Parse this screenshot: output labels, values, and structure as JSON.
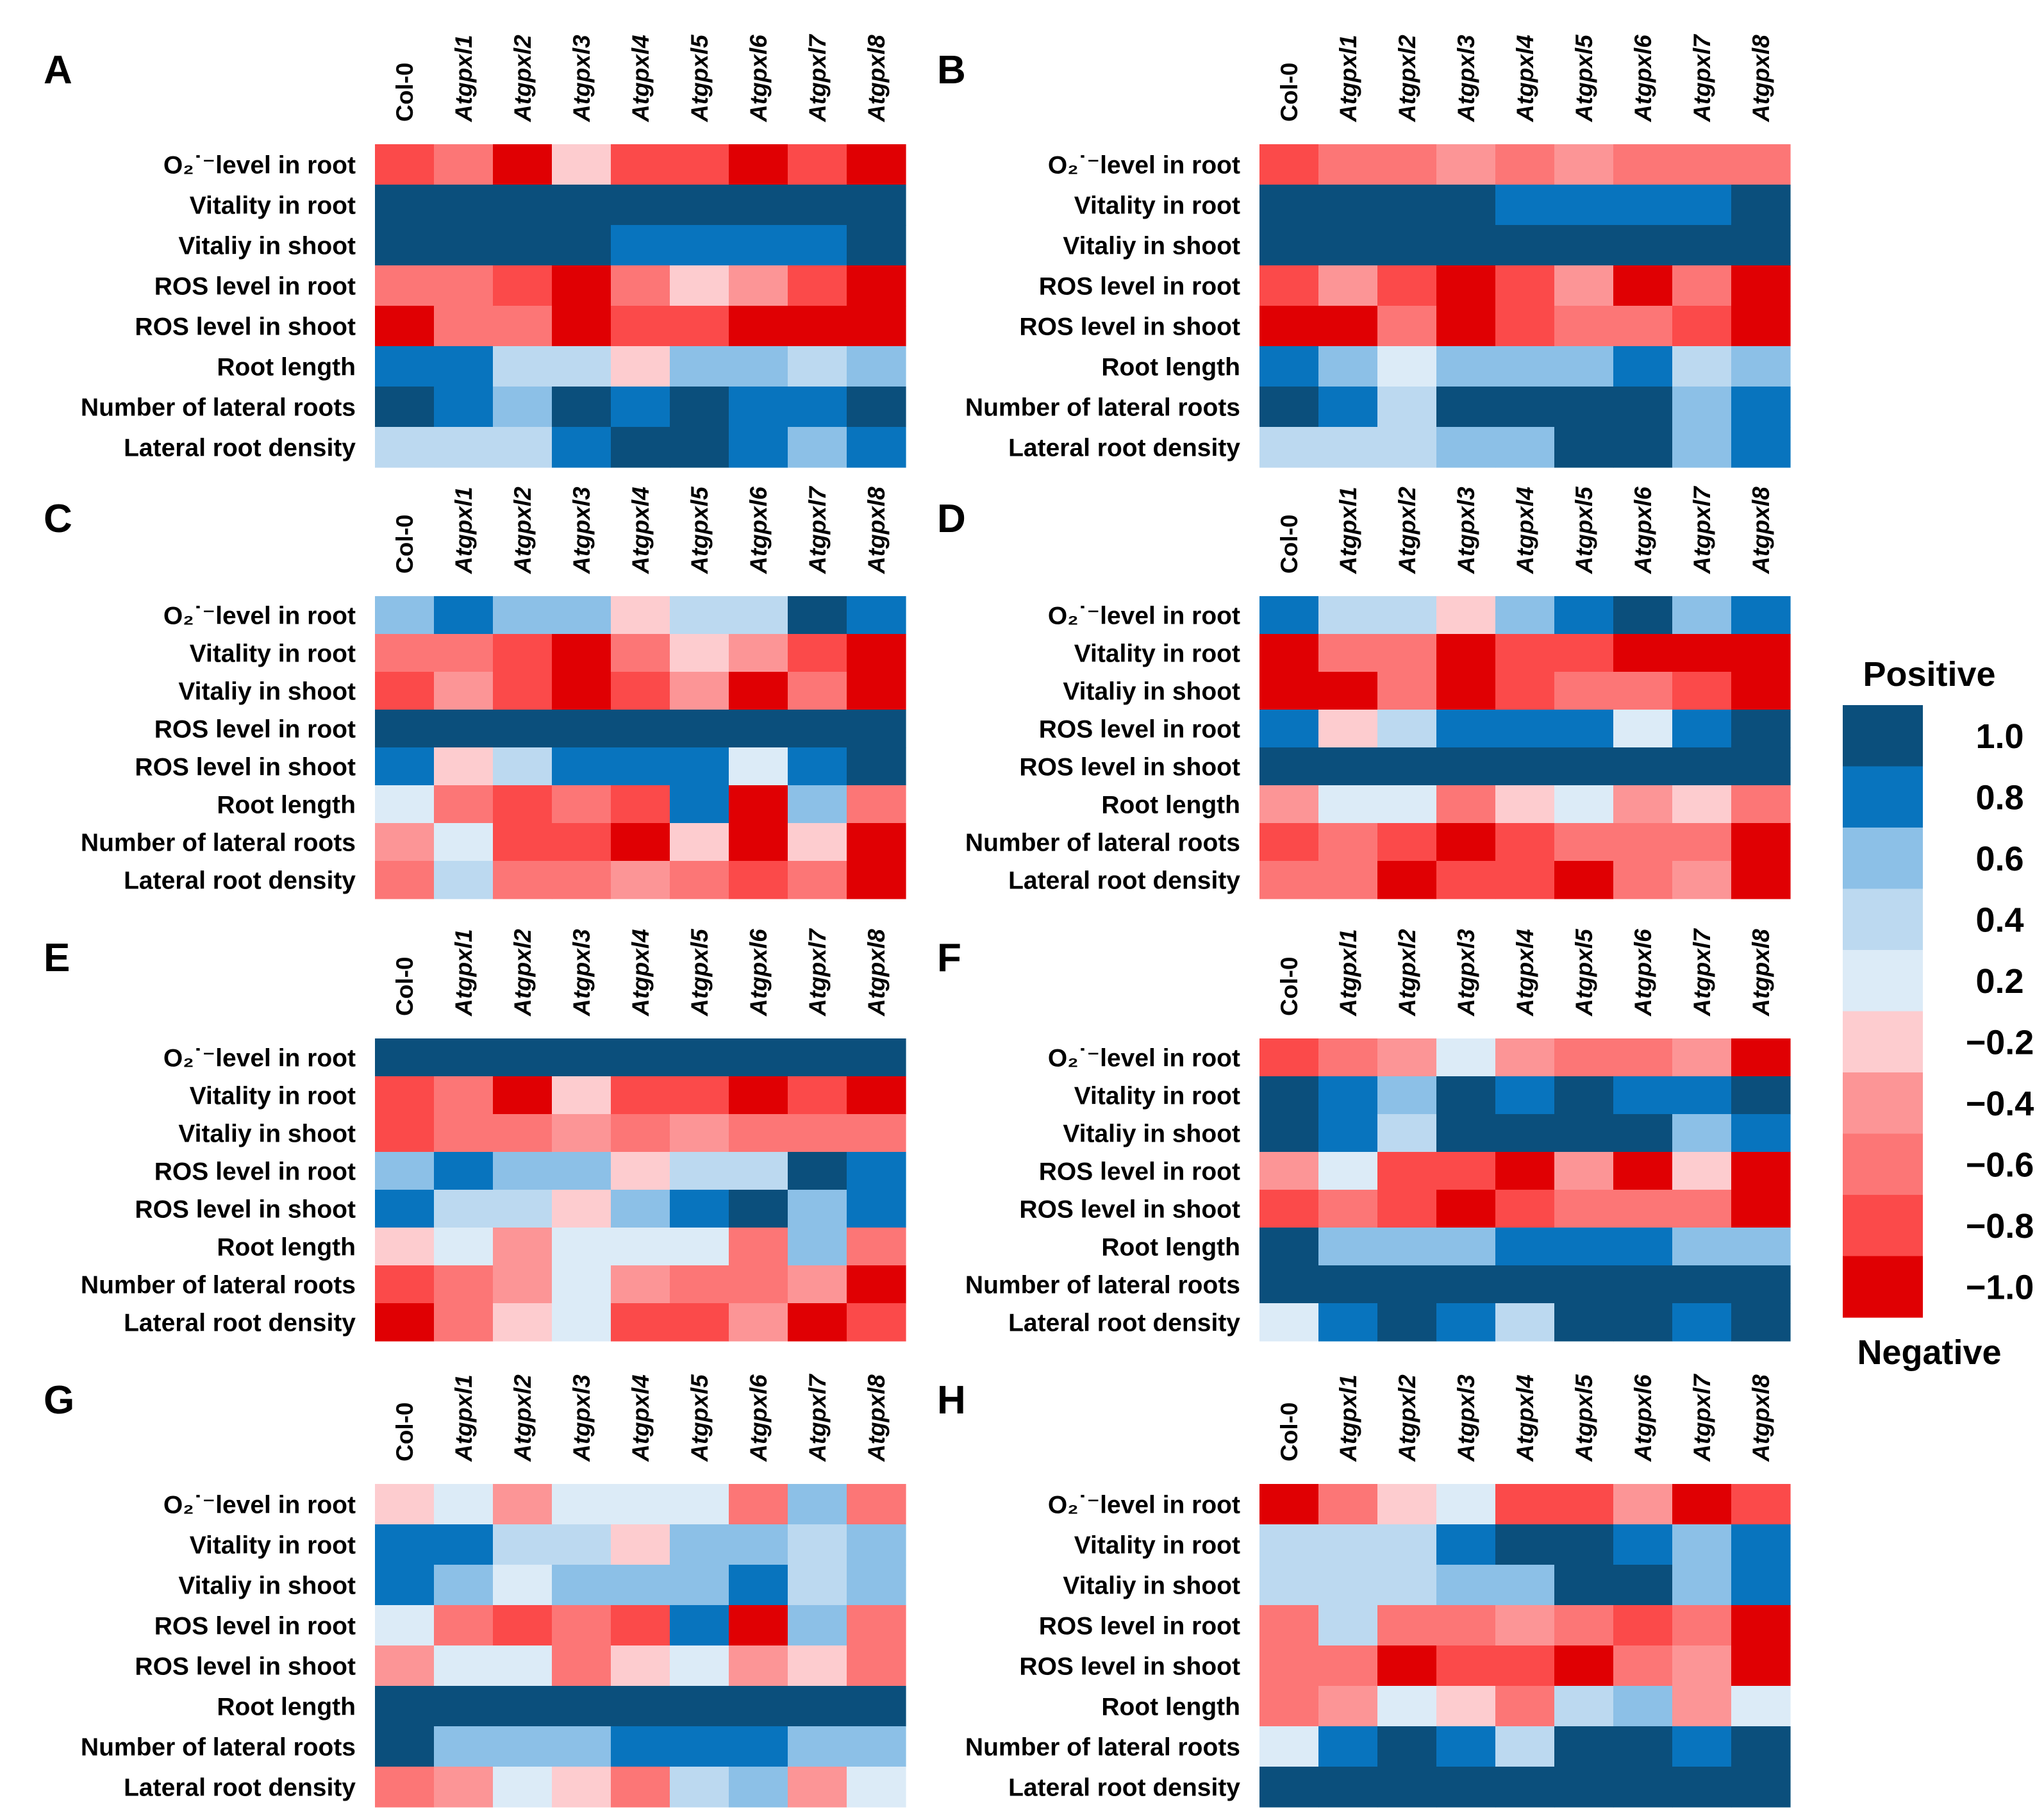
{
  "chart_data": {
    "type": "heatmap",
    "genotypes": [
      "Col-0",
      "Atgpxl1",
      "Atgpxl2",
      "Atgpxl3",
      "Atgpxl4",
      "Atgpxl5",
      "Atgpxl6",
      "Atgpxl7",
      "Atgpxl8"
    ],
    "rows": [
      "O₂˙⁻level in root",
      "Vitality in root",
      "Vitaliy in shoot",
      "ROS level in root",
      "ROS level in shoot",
      "Root length",
      "Number of lateral roots",
      "Lateral root density"
    ],
    "legend": {
      "title_top": "Positive",
      "title_bottom": "Negative",
      "levels": [
        {
          "label": "1.0",
          "color": "#0b4f7c"
        },
        {
          "label": "0.8",
          "color": "#0874be"
        },
        {
          "label": "0.6",
          "color": "#8cc0e7"
        },
        {
          "label": "0.4",
          "color": "#bcd9f0"
        },
        {
          "label": "0.2",
          "color": "#dcebf7"
        },
        {
          "label": "−0.2",
          "color": "#fdcccf"
        },
        {
          "label": "−0.4",
          "color": "#fc9596"
        },
        {
          "label": "−0.6",
          "color": "#fc7676"
        },
        {
          "label": "−0.8",
          "color": "#fb4a4a"
        },
        {
          "label": "−1.0",
          "color": "#e00003"
        }
      ]
    },
    "panels": [
      {
        "label": "A",
        "values": [
          [
            -0.8,
            -0.6,
            -1.0,
            -0.2,
            -0.8,
            -0.8,
            -1.0,
            -0.8,
            -1.0
          ],
          [
            1.0,
            1.0,
            1.0,
            1.0,
            1.0,
            1.0,
            1.0,
            1.0,
            1.0
          ],
          [
            1.0,
            1.0,
            1.0,
            1.0,
            0.8,
            0.8,
            0.8,
            0.8,
            1.0
          ],
          [
            -0.6,
            -0.6,
            -0.8,
            -1.0,
            -0.6,
            -0.2,
            -0.4,
            -0.8,
            -1.0
          ],
          [
            -1.0,
            -0.6,
            -0.6,
            -1.0,
            -0.8,
            -0.8,
            -1.0,
            -1.0,
            -1.0
          ],
          [
            0.8,
            0.8,
            0.4,
            0.4,
            -0.2,
            0.6,
            0.6,
            0.4,
            0.6
          ],
          [
            1.0,
            0.8,
            0.6,
            1.0,
            0.8,
            1.0,
            0.8,
            0.8,
            1.0
          ],
          [
            0.4,
            0.4,
            0.4,
            0.8,
            1.0,
            1.0,
            0.8,
            0.6,
            0.8
          ]
        ]
      },
      {
        "label": "B",
        "values": [
          [
            -0.8,
            -0.6,
            -0.6,
            -0.4,
            -0.6,
            -0.4,
            -0.6,
            -0.6,
            -0.6
          ],
          [
            1.0,
            1.0,
            1.0,
            1.0,
            0.8,
            0.8,
            0.8,
            0.8,
            1.0
          ],
          [
            1.0,
            1.0,
            1.0,
            1.0,
            1.0,
            1.0,
            1.0,
            1.0,
            1.0
          ],
          [
            -0.8,
            -0.4,
            -0.8,
            -1.0,
            -0.8,
            -0.4,
            -1.0,
            -0.6,
            -1.0
          ],
          [
            -1.0,
            -1.0,
            -0.6,
            -1.0,
            -0.8,
            -0.6,
            -0.6,
            -0.8,
            -1.0
          ],
          [
            0.8,
            0.6,
            0.2,
            0.6,
            0.6,
            0.6,
            0.8,
            0.4,
            0.6
          ],
          [
            1.0,
            0.8,
            0.4,
            1.0,
            1.0,
            1.0,
            1.0,
            0.6,
            0.8
          ],
          [
            0.4,
            0.4,
            0.4,
            0.6,
            0.6,
            1.0,
            1.0,
            0.6,
            0.8
          ]
        ]
      },
      {
        "label": "C",
        "values": [
          [
            0.6,
            0.8,
            0.6,
            0.6,
            -0.2,
            0.4,
            0.4,
            1.0,
            0.8
          ],
          [
            -0.6,
            -0.6,
            -0.8,
            -1.0,
            -0.6,
            -0.2,
            -0.4,
            -0.8,
            -1.0
          ],
          [
            -0.8,
            -0.4,
            -0.8,
            -1.0,
            -0.8,
            -0.4,
            -1.0,
            -0.6,
            -1.0
          ],
          [
            1.0,
            1.0,
            1.0,
            1.0,
            1.0,
            1.0,
            1.0,
            1.0,
            1.0
          ],
          [
            0.8,
            -0.2,
            0.4,
            0.8,
            0.8,
            0.8,
            0.2,
            0.8,
            1.0
          ],
          [
            0.2,
            -0.6,
            -0.8,
            -0.6,
            -0.8,
            0.8,
            -1.0,
            0.6,
            -0.6
          ],
          [
            -0.4,
            0.2,
            -0.8,
            -0.8,
            -1.0,
            -0.2,
            -1.0,
            -0.2,
            -1.0
          ],
          [
            -0.6,
            0.4,
            -0.6,
            -0.6,
            -0.4,
            -0.6,
            -0.8,
            -0.6,
            -1.0
          ]
        ]
      },
      {
        "label": "D",
        "values": [
          [
            0.8,
            0.4,
            0.4,
            -0.2,
            0.6,
            0.8,
            1.0,
            0.6,
            0.8
          ],
          [
            -1.0,
            -0.6,
            -0.6,
            -1.0,
            -0.8,
            -0.8,
            -1.0,
            -1.0,
            -1.0
          ],
          [
            -1.0,
            -1.0,
            -0.6,
            -1.0,
            -0.8,
            -0.6,
            -0.6,
            -0.8,
            -1.0
          ],
          [
            0.8,
            -0.2,
            0.4,
            0.8,
            0.8,
            0.8,
            0.2,
            0.8,
            1.0
          ],
          [
            1.0,
            1.0,
            1.0,
            1.0,
            1.0,
            1.0,
            1.0,
            1.0,
            1.0
          ],
          [
            -0.4,
            0.2,
            0.2,
            -0.6,
            -0.2,
            0.2,
            -0.4,
            -0.2,
            -0.6
          ],
          [
            -0.8,
            -0.6,
            -0.8,
            -1.0,
            -0.8,
            -0.6,
            -0.6,
            -0.6,
            -1.0
          ],
          [
            -0.6,
            -0.6,
            -1.0,
            -0.8,
            -0.8,
            -1.0,
            -0.6,
            -0.4,
            -1.0
          ]
        ]
      },
      {
        "label": "E",
        "values": [
          [
            1.0,
            1.0,
            1.0,
            1.0,
            1.0,
            1.0,
            1.0,
            1.0,
            1.0
          ],
          [
            -0.8,
            -0.6,
            -1.0,
            -0.2,
            -0.8,
            -0.8,
            -1.0,
            -0.8,
            -1.0
          ],
          [
            -0.8,
            -0.6,
            -0.6,
            -0.4,
            -0.6,
            -0.4,
            -0.6,
            -0.6,
            -0.6
          ],
          [
            0.6,
            0.8,
            0.6,
            0.6,
            -0.2,
            0.4,
            0.4,
            1.0,
            0.8
          ],
          [
            0.8,
            0.4,
            0.4,
            -0.2,
            0.6,
            0.8,
            1.0,
            0.6,
            0.8
          ],
          [
            -0.2,
            0.2,
            -0.4,
            0.2,
            0.2,
            0.2,
            -0.6,
            0.6,
            -0.6
          ],
          [
            -0.8,
            -0.6,
            -0.4,
            0.2,
            -0.4,
            -0.6,
            -0.6,
            -0.4,
            -1.0
          ],
          [
            -1.0,
            -0.6,
            -0.2,
            0.2,
            -0.8,
            -0.8,
            -0.4,
            -1.0,
            -0.8
          ]
        ]
      },
      {
        "label": "F",
        "values": [
          [
            -0.8,
            -0.6,
            -0.4,
            0.2,
            -0.4,
            -0.6,
            -0.6,
            -0.4,
            -1.0
          ],
          [
            1.0,
            0.8,
            0.6,
            1.0,
            0.8,
            1.0,
            0.8,
            0.8,
            1.0
          ],
          [
            1.0,
            0.8,
            0.4,
            1.0,
            1.0,
            1.0,
            1.0,
            0.6,
            0.8
          ],
          [
            -0.4,
            0.2,
            -0.8,
            -0.8,
            -1.0,
            -0.4,
            -1.0,
            -0.2,
            -1.0
          ],
          [
            -0.8,
            -0.6,
            -0.8,
            -1.0,
            -0.8,
            -0.6,
            -0.6,
            -0.6,
            -1.0
          ],
          [
            1.0,
            0.6,
            0.6,
            0.6,
            0.8,
            0.8,
            0.8,
            0.6,
            0.6
          ],
          [
            1.0,
            1.0,
            1.0,
            1.0,
            1.0,
            1.0,
            1.0,
            1.0,
            1.0
          ],
          [
            0.2,
            0.8,
            1.0,
            0.8,
            0.4,
            1.0,
            1.0,
            0.8,
            1.0
          ]
        ]
      },
      {
        "label": "G",
        "values": [
          [
            -0.2,
            0.2,
            -0.4,
            0.2,
            0.2,
            0.2,
            -0.6,
            0.6,
            -0.6
          ],
          [
            0.8,
            0.8,
            0.4,
            0.4,
            -0.2,
            0.6,
            0.6,
            0.4,
            0.6
          ],
          [
            0.8,
            0.6,
            0.2,
            0.6,
            0.6,
            0.6,
            0.8,
            0.4,
            0.6
          ],
          [
            0.2,
            -0.6,
            -0.8,
            -0.6,
            -0.8,
            0.8,
            -1.0,
            0.6,
            -0.6
          ],
          [
            -0.4,
            0.2,
            0.2,
            -0.6,
            -0.2,
            0.2,
            -0.4,
            -0.2,
            -0.6
          ],
          [
            1.0,
            1.0,
            1.0,
            1.0,
            1.0,
            1.0,
            1.0,
            1.0,
            1.0
          ],
          [
            1.0,
            0.6,
            0.6,
            0.6,
            0.8,
            0.8,
            0.8,
            0.6,
            0.6
          ],
          [
            -0.6,
            -0.4,
            0.2,
            -0.2,
            -0.6,
            0.4,
            0.6,
            -0.4,
            0.2
          ]
        ]
      },
      {
        "label": "H",
        "values": [
          [
            -1.0,
            -0.6,
            -0.2,
            0.2,
            -0.8,
            -0.8,
            -0.4,
            -1.0,
            -0.8
          ],
          [
            0.4,
            0.4,
            0.4,
            0.8,
            1.0,
            1.0,
            0.8,
            0.6,
            0.8
          ],
          [
            0.4,
            0.4,
            0.4,
            0.6,
            0.6,
            1.0,
            1.0,
            0.6,
            0.8
          ],
          [
            -0.6,
            0.4,
            -0.6,
            -0.6,
            -0.4,
            -0.6,
            -0.8,
            -0.6,
            -1.0
          ],
          [
            -0.6,
            -0.6,
            -1.0,
            -0.8,
            -0.8,
            -1.0,
            -0.6,
            -0.4,
            -1.0
          ],
          [
            -0.6,
            -0.4,
            0.2,
            -0.2,
            -0.6,
            0.4,
            0.6,
            -0.4,
            0.2
          ],
          [
            0.2,
            0.8,
            1.0,
            0.8,
            0.4,
            1.0,
            1.0,
            0.8,
            1.0
          ],
          [
            1.0,
            1.0,
            1.0,
            1.0,
            1.0,
            1.0,
            1.0,
            1.0,
            1.0
          ]
        ]
      }
    ]
  }
}
